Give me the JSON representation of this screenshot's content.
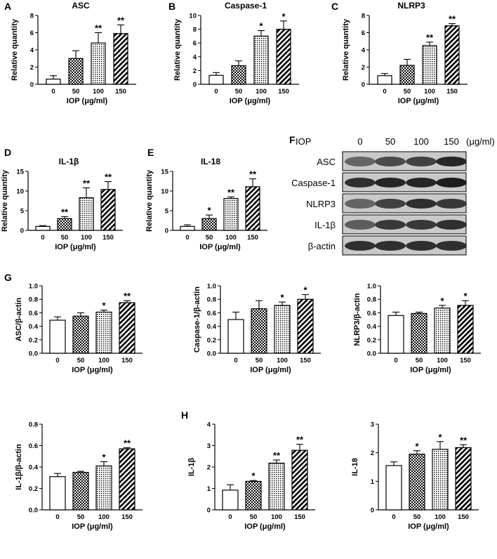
{
  "figure": {
    "panel_letters": [
      "A",
      "B",
      "C",
      "D",
      "E",
      "F",
      "G",
      "H"
    ]
  },
  "chart_data": [
    {
      "id": "A",
      "type": "bar",
      "title": "ASC",
      "xlabel": "IOP (μg/ml)",
      "ylabel": "Relative quantity",
      "categories": [
        "0",
        "50",
        "100",
        "150"
      ],
      "values": [
        0.6,
        3.0,
        4.8,
        5.9
      ],
      "errors": [
        0.4,
        0.9,
        1.2,
        1.0
      ],
      "significance": [
        "",
        "",
        "**",
        "**"
      ],
      "ylim": [
        0,
        8
      ],
      "yticks": [
        0,
        2,
        4,
        6,
        8
      ],
      "patterns": [
        "white",
        "checker",
        "dots",
        "diag"
      ]
    },
    {
      "id": "B",
      "type": "bar",
      "title": "Caspase-1",
      "xlabel": "IOP (μg/ml)",
      "ylabel": "Relative quantity",
      "categories": [
        "0",
        "50",
        "100",
        "150"
      ],
      "values": [
        1.3,
        2.7,
        7.0,
        8.0
      ],
      "errors": [
        0.4,
        0.7,
        0.8,
        1.2
      ],
      "significance": [
        "",
        "",
        "*",
        "*"
      ],
      "ylim": [
        0,
        10
      ],
      "yticks": [
        0,
        2,
        4,
        6,
        8,
        10
      ],
      "patterns": [
        "white",
        "checker",
        "dots",
        "diag"
      ]
    },
    {
      "id": "C",
      "type": "bar",
      "title": "NLRP3",
      "xlabel": "IOP (μg/ml)",
      "ylabel": "Relative quantity",
      "categories": [
        "0",
        "50",
        "100",
        "150"
      ],
      "values": [
        1.0,
        2.2,
        4.5,
        6.8
      ],
      "errors": [
        0.25,
        0.7,
        0.4,
        0.25
      ],
      "significance": [
        "",
        "",
        "**",
        "**"
      ],
      "ylim": [
        0,
        8
      ],
      "yticks": [
        0,
        2,
        4,
        6,
        8
      ],
      "patterns": [
        "white",
        "checker",
        "dots",
        "diag"
      ]
    },
    {
      "id": "D",
      "type": "bar",
      "title": "IL-1β",
      "xlabel": "IOP (μg/ml)",
      "ylabel": "Relative quantity",
      "categories": [
        "0",
        "50",
        "100",
        "150"
      ],
      "values": [
        1.0,
        3.0,
        8.3,
        10.4
      ],
      "errors": [
        0.2,
        0.5,
        2.5,
        2.0
      ],
      "significance": [
        "",
        "**",
        "**",
        "**"
      ],
      "ylim": [
        0,
        15
      ],
      "yticks": [
        0,
        5,
        10,
        15
      ],
      "patterns": [
        "white",
        "checker",
        "dots",
        "diag"
      ]
    },
    {
      "id": "E",
      "type": "bar",
      "title": "IL-18",
      "xlabel": "IOP (μg/ml)",
      "ylabel": "Relative quantity",
      "categories": [
        "0",
        "50",
        "100",
        "150"
      ],
      "values": [
        1.0,
        3.0,
        8.1,
        11.1
      ],
      "errors": [
        0.4,
        0.9,
        0.4,
        2.0
      ],
      "significance": [
        "",
        "*",
        "**",
        "**"
      ],
      "ylim": [
        0,
        15
      ],
      "yticks": [
        0,
        5,
        10,
        15
      ],
      "patterns": [
        "white",
        "checker",
        "dots",
        "diag"
      ]
    },
    {
      "id": "G1",
      "type": "bar",
      "title": "",
      "xlabel": "IOP (μg/ml)",
      "ylabel": "ASC/β-actin",
      "categories": [
        "0",
        "50",
        "100",
        "150"
      ],
      "values": [
        0.49,
        0.55,
        0.61,
        0.75
      ],
      "errors": [
        0.05,
        0.05,
        0.03,
        0.03
      ],
      "significance": [
        "",
        "",
        "*",
        "**"
      ],
      "ylim": [
        0,
        1.0
      ],
      "yticks": [
        0,
        0.2,
        0.4,
        0.6,
        0.8,
        1.0
      ],
      "patterns": [
        "white",
        "checker",
        "dots",
        "diag"
      ]
    },
    {
      "id": "G2",
      "type": "bar",
      "title": "",
      "xlabel": "IOP (μg/ml)",
      "ylabel": "Caspase-1/β-actin",
      "categories": [
        "0",
        "50",
        "100",
        "150"
      ],
      "values": [
        0.5,
        0.66,
        0.71,
        0.8
      ],
      "errors": [
        0.11,
        0.12,
        0.05,
        0.07
      ],
      "significance": [
        "",
        "",
        "*",
        "*"
      ],
      "ylim": [
        0,
        1.0
      ],
      "yticks": [
        0,
        0.2,
        0.4,
        0.6,
        0.8,
        1.0
      ],
      "patterns": [
        "white",
        "checker",
        "dots",
        "diag"
      ]
    },
    {
      "id": "G3",
      "type": "bar",
      "title": "",
      "xlabel": "IOP (μg/ml)",
      "ylabel": "NLRP3/β-actin",
      "categories": [
        "0",
        "50",
        "100",
        "150"
      ],
      "values": [
        0.56,
        0.59,
        0.67,
        0.71
      ],
      "errors": [
        0.05,
        0.02,
        0.04,
        0.07
      ],
      "significance": [
        "",
        "",
        "*",
        "*"
      ],
      "ylim": [
        0,
        1.0
      ],
      "yticks": [
        0,
        0.2,
        0.4,
        0.6,
        0.8,
        1.0
      ],
      "patterns": [
        "white",
        "checker",
        "dots",
        "diag"
      ]
    },
    {
      "id": "G4",
      "type": "bar",
      "title": "",
      "xlabel": "IOP (μg/ml)",
      "ylabel": "IL-1β/β-actin",
      "categories": [
        "0",
        "50",
        "100",
        "150"
      ],
      "values": [
        0.31,
        0.35,
        0.41,
        0.57
      ],
      "errors": [
        0.03,
        0.01,
        0.04,
        0.01
      ],
      "significance": [
        "",
        "",
        "*",
        "**"
      ],
      "ylim": [
        0,
        0.8
      ],
      "yticks": [
        0,
        0.2,
        0.4,
        0.6,
        0.8
      ],
      "patterns": [
        "white",
        "checker",
        "dots",
        "diag"
      ]
    },
    {
      "id": "H1",
      "type": "bar",
      "title": "",
      "xlabel": "IOP (μg/ml)",
      "ylabel": "IL-1β",
      "categories": [
        "0",
        "50",
        "100",
        "150"
      ],
      "values": [
        0.92,
        1.33,
        2.18,
        2.78
      ],
      "errors": [
        0.25,
        0.04,
        0.15,
        0.28
      ],
      "significance": [
        "",
        "*",
        "**",
        "**"
      ],
      "ylim": [
        0,
        4
      ],
      "yticks": [
        0,
        1,
        2,
        3,
        4
      ],
      "patterns": [
        "white",
        "checker",
        "dots",
        "diag"
      ]
    },
    {
      "id": "H2",
      "type": "bar",
      "title": "",
      "xlabel": "IOP (μg/ml)",
      "ylabel": "IL-18",
      "categories": [
        "0",
        "50",
        "100",
        "150"
      ],
      "values": [
        1.55,
        1.95,
        2.12,
        2.18
      ],
      "errors": [
        0.13,
        0.12,
        0.27,
        0.1
      ],
      "significance": [
        "",
        "*",
        "*",
        "**"
      ],
      "ylim": [
        0,
        3
      ],
      "yticks": [
        0,
        1,
        2,
        3
      ],
      "ybase": 0,
      "patterns": [
        "white",
        "checker",
        "dots",
        "diag"
      ]
    }
  ],
  "blot": {
    "header_label": "IOP",
    "doses": [
      "0",
      "50",
      "100",
      "150"
    ],
    "unit": "(μg/ml)",
    "rows": [
      {
        "label": "ASC",
        "intensity": [
          0.55,
          0.7,
          0.75,
          0.9
        ]
      },
      {
        "label": "Caspase-1",
        "intensity": [
          0.85,
          0.9,
          0.9,
          0.95
        ]
      },
      {
        "label": "NLRP3",
        "intensity": [
          0.55,
          0.75,
          0.85,
          0.8
        ]
      },
      {
        "label": "IL-1β",
        "intensity": [
          0.6,
          0.8,
          0.8,
          0.85
        ]
      },
      {
        "label": "β-actin",
        "intensity": [
          0.85,
          0.85,
          0.85,
          0.85
        ]
      }
    ]
  }
}
